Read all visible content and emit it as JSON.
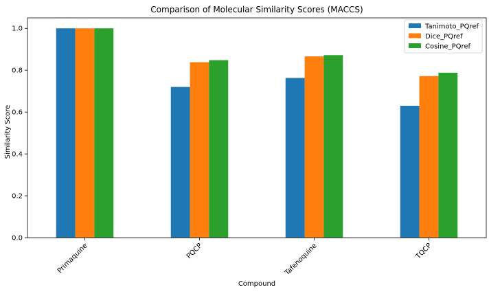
{
  "chart_data": {
    "type": "bar",
    "title": "Comparison of Molecular Similarity Scores (MACCS)",
    "xlabel": "Compound",
    "ylabel": "Similarity Score",
    "categories": [
      "Primaquine",
      "PQCP",
      "Tafenoquine",
      "TQCP"
    ],
    "series": [
      {
        "name": "Tanimoto_PQref",
        "color": "#1f77b4",
        "values": [
          1.0,
          0.72,
          0.763,
          0.63
        ]
      },
      {
        "name": "Dice_PQref",
        "color": "#ff7f0e",
        "values": [
          1.0,
          0.838,
          0.866,
          0.772
        ]
      },
      {
        "name": "Cosine_PQref",
        "color": "#2ca02c",
        "values": [
          1.0,
          0.848,
          0.872,
          0.788
        ]
      }
    ],
    "ylim": [
      0,
      1.05
    ],
    "yticks": [
      "0.0",
      "0.2",
      "0.4",
      "0.6",
      "0.8",
      "1.0"
    ],
    "grid": false,
    "legend_position": "top-right"
  }
}
